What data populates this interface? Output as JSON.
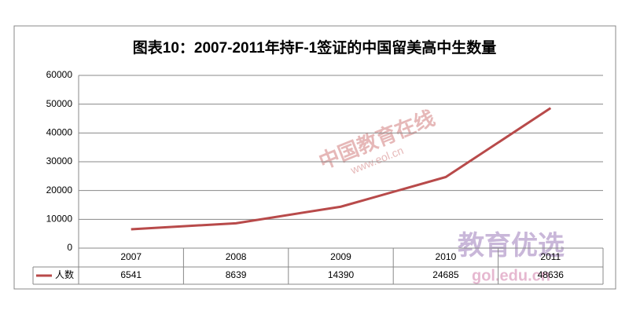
{
  "chart_data": {
    "type": "line",
    "title": "图表10：2007-2011年持F-1签证的中国留美高中生数量",
    "categories": [
      "2007",
      "2008",
      "2009",
      "2010",
      "2011"
    ],
    "series": [
      {
        "name": "人数",
        "color": "#b84a4a",
        "values": [
          6541,
          8639,
          14390,
          24685,
          48636
        ]
      }
    ],
    "ylim": [
      0,
      60000
    ],
    "yticks": [
      0,
      10000,
      20000,
      30000,
      40000,
      50000,
      60000
    ],
    "grid": true,
    "legend": "bottom-left",
    "watermarks": [
      "中国教育在线",
      "www.eol.cn",
      "教育优选",
      "gol.edu.cn"
    ]
  }
}
